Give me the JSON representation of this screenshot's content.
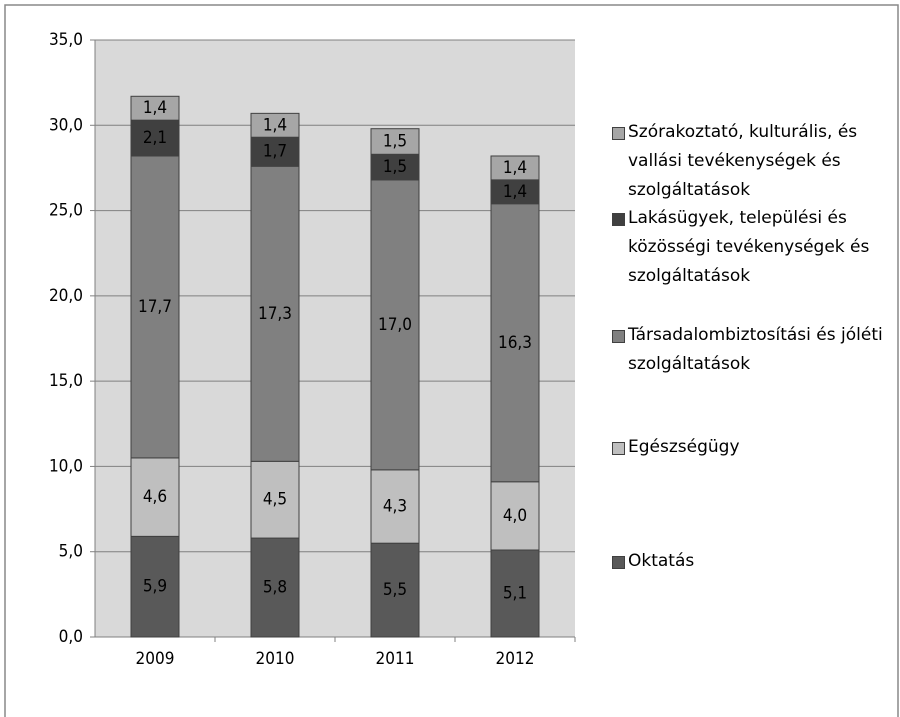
{
  "chart_data": {
    "type": "stacked_bar",
    "categories": [
      "2009",
      "2010",
      "2011",
      "2012"
    ],
    "series": [
      {
        "name": "Oktatás",
        "color": "#595959",
        "values": [
          5.9,
          5.8,
          5.5,
          5.1
        ],
        "value_labels": [
          "5,9",
          "5,8",
          "5,5",
          "5,1"
        ]
      },
      {
        "name": "Egészségügy",
        "color": "#bfbfbf",
        "values": [
          4.6,
          4.5,
          4.3,
          4.0
        ],
        "value_labels": [
          "4,6",
          "4,5",
          "4,3",
          "4,0"
        ]
      },
      {
        "name": "Társadalombiztosítási és jóléti szolgáltatások",
        "color": "#808080",
        "values": [
          17.7,
          17.3,
          17.0,
          16.3
        ],
        "value_labels": [
          "17,7",
          "17,3",
          "17,0",
          "16,3"
        ]
      },
      {
        "name": "Lakásügyek, települési és közösségi tevékenységek és szolgáltatások",
        "color": "#404040",
        "values": [
          2.1,
          1.7,
          1.5,
          1.4
        ],
        "value_labels": [
          "2,1",
          "1,7",
          "1,5",
          "1,4"
        ]
      },
      {
        "name": "Szórakoztató, kulturális, és vallási tevékenységek és szolgáltatások",
        "color": "#a6a6a6",
        "values": [
          1.4,
          1.4,
          1.5,
          1.4
        ],
        "value_labels": [
          "1,4",
          "1,4",
          "1,5",
          "1,4"
        ]
      }
    ],
    "ylim": [
      0,
      35
    ],
    "yticks": [
      {
        "value": 0,
        "label": "0,0"
      },
      {
        "value": 5,
        "label": "5,0"
      },
      {
        "value": 10,
        "label": "10,0"
      },
      {
        "value": 15,
        "label": "15,0"
      },
      {
        "value": 20,
        "label": "20,0"
      },
      {
        "value": 25,
        "label": "25,0"
      },
      {
        "value": 30,
        "label": "30,0"
      },
      {
        "value": 35,
        "label": "35,0"
      }
    ],
    "grid": true,
    "legend": "right"
  }
}
